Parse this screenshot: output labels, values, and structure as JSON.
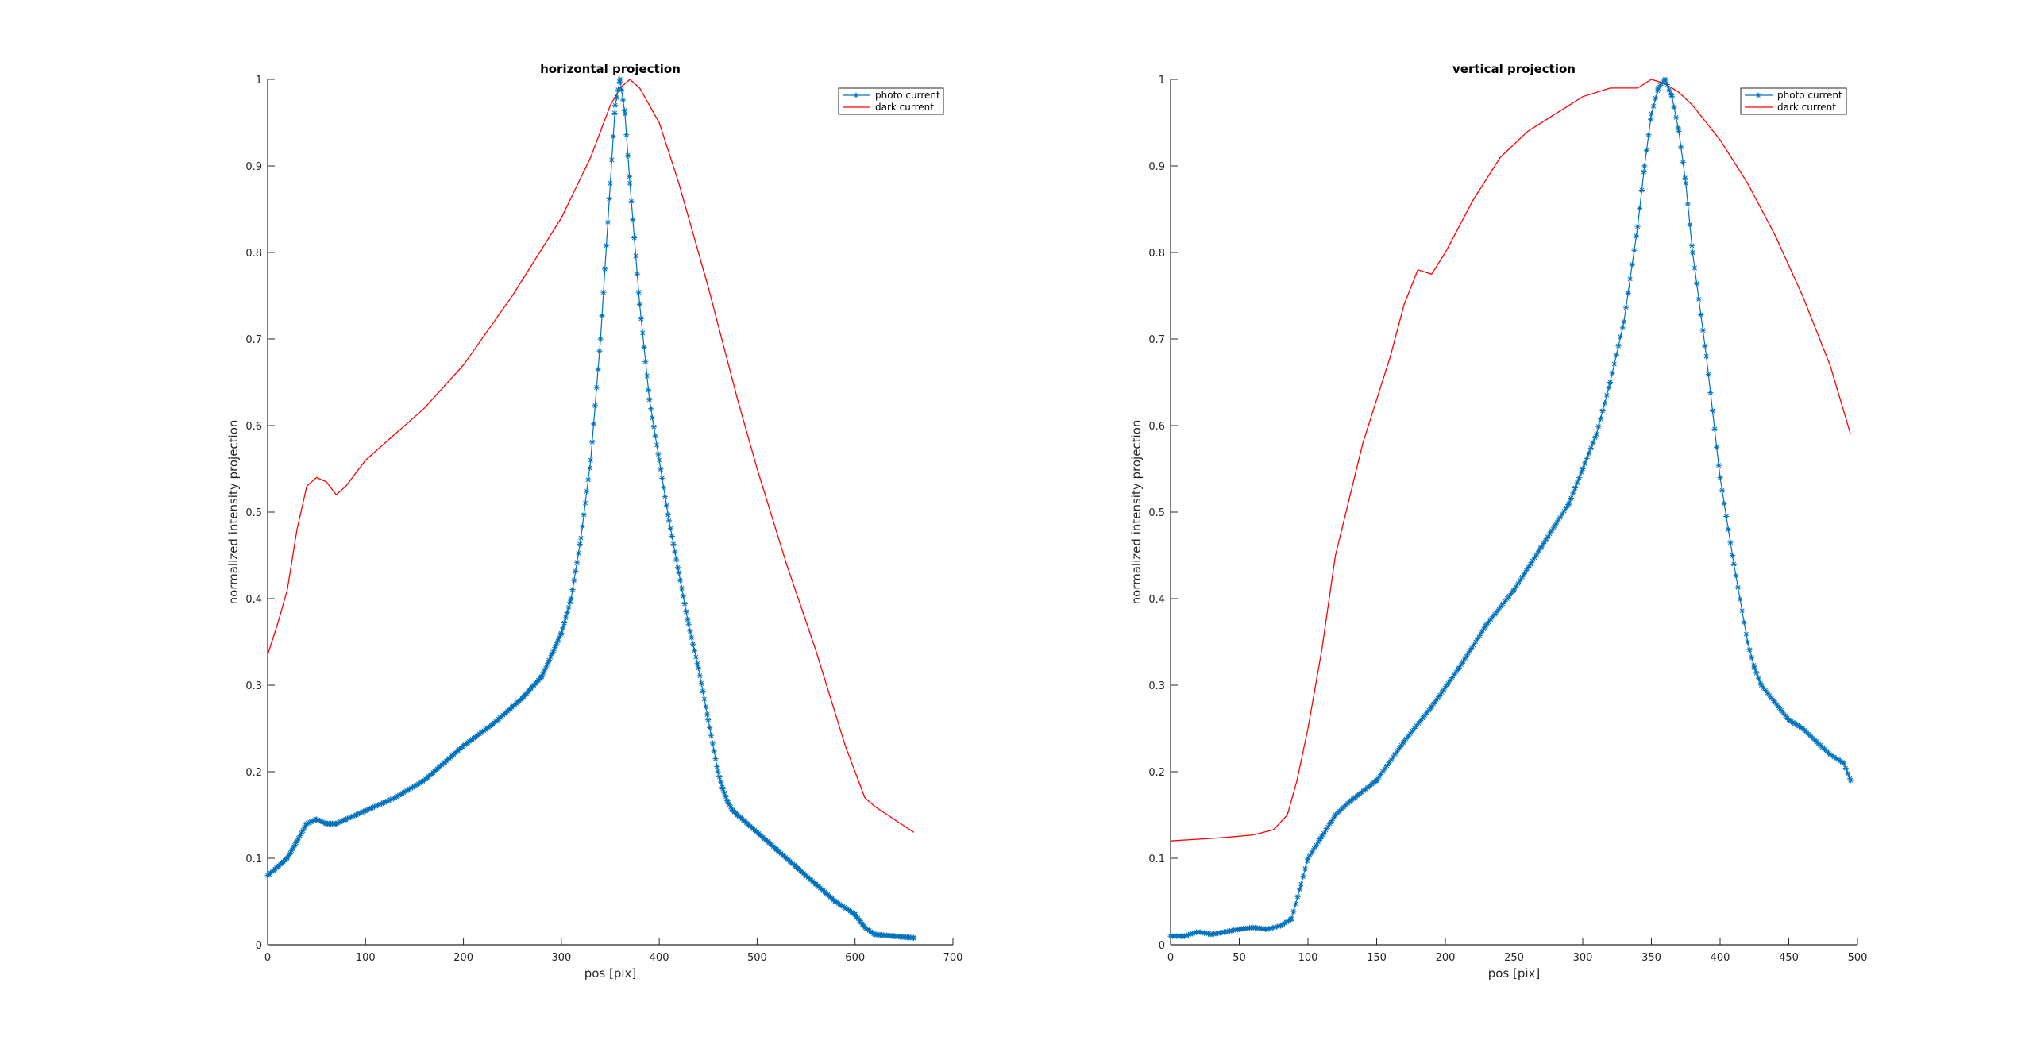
{
  "colors": {
    "photo": "#0072BD",
    "dark": "#FF0000",
    "axis": "#262626"
  },
  "chart_data": [
    {
      "type": "line",
      "title": "horizontal projection",
      "xlabel": "pos [pix]",
      "ylabel": "normalized intensity projection",
      "xlim": [
        0,
        700
      ],
      "ylim": [
        0,
        1
      ],
      "xticks": [
        0,
        100,
        200,
        300,
        400,
        500,
        600,
        700
      ],
      "xtick_labels": [
        "0",
        "100",
        "200",
        "300",
        "400",
        "500",
        "600",
        "700"
      ],
      "yticks": [
        0,
        0.1,
        0.2,
        0.3,
        0.4,
        0.5,
        0.6,
        0.7,
        0.8,
        0.9,
        1
      ],
      "ytick_labels": [
        "0",
        "0.1",
        "0.2",
        "0.3",
        "0.4",
        "0.5",
        "0.6",
        "0.7",
        "0.8",
        "0.9",
        "1"
      ],
      "legend_position": "top-right",
      "grid": false,
      "series": [
        {
          "name": "photo current",
          "marker": "*",
          "x": [
            0,
            10,
            20,
            30,
            40,
            50,
            60,
            70,
            80,
            100,
            130,
            160,
            200,
            230,
            260,
            280,
            300,
            310,
            320,
            330,
            340,
            350,
            355,
            360,
            365,
            370,
            380,
            390,
            400,
            410,
            420,
            430,
            440,
            450,
            460,
            465,
            470,
            475,
            480,
            490,
            500,
            520,
            540,
            560,
            580,
            600,
            610,
            620,
            640,
            660
          ],
          "y": [
            0.08,
            0.09,
            0.1,
            0.12,
            0.14,
            0.145,
            0.14,
            0.14,
            0.145,
            0.155,
            0.17,
            0.19,
            0.23,
            0.255,
            0.285,
            0.31,
            0.36,
            0.4,
            0.47,
            0.56,
            0.7,
            0.88,
            0.97,
            1.0,
            0.96,
            0.88,
            0.74,
            0.63,
            0.56,
            0.49,
            0.43,
            0.37,
            0.32,
            0.26,
            0.2,
            0.18,
            0.165,
            0.155,
            0.15,
            0.14,
            0.13,
            0.11,
            0.09,
            0.07,
            0.05,
            0.035,
            0.02,
            0.012,
            0.01,
            0.008
          ]
        },
        {
          "name": "dark current",
          "marker": "none",
          "x": [
            0,
            10,
            20,
            30,
            40,
            50,
            60,
            70,
            80,
            100,
            130,
            160,
            200,
            250,
            300,
            330,
            350,
            360,
            370,
            380,
            400,
            420,
            450,
            480,
            500,
            530,
            560,
            590,
            610,
            620,
            640,
            660
          ],
          "y": [
            0.335,
            0.37,
            0.41,
            0.48,
            0.53,
            0.54,
            0.535,
            0.52,
            0.53,
            0.56,
            0.59,
            0.62,
            0.67,
            0.75,
            0.84,
            0.91,
            0.97,
            0.99,
            1.0,
            0.99,
            0.95,
            0.88,
            0.76,
            0.63,
            0.55,
            0.44,
            0.34,
            0.23,
            0.17,
            0.16,
            0.145,
            0.13
          ]
        }
      ]
    },
    {
      "type": "line",
      "title": "vertical projection",
      "xlabel": "pos [pix]",
      "ylabel": "normalized intensity projection",
      "xlim": [
        0,
        500
      ],
      "ylim": [
        0,
        1
      ],
      "xticks": [
        0,
        50,
        100,
        150,
        200,
        250,
        300,
        350,
        400,
        450,
        500
      ],
      "xtick_labels": [
        "0",
        "50",
        "100",
        "150",
        "200",
        "250",
        "300",
        "350",
        "400",
        "450",
        "500"
      ],
      "yticks": [
        0,
        0.1,
        0.2,
        0.3,
        0.4,
        0.5,
        0.6,
        0.7,
        0.8,
        0.9,
        1
      ],
      "ytick_labels": [
        "0",
        "0.1",
        "0.2",
        "0.3",
        "0.4",
        "0.5",
        "0.6",
        "0.7",
        "0.8",
        "0.9",
        "1"
      ],
      "legend_position": "top-right",
      "grid": false,
      "series": [
        {
          "name": "photo current",
          "marker": "*",
          "x": [
            0,
            10,
            20,
            30,
            40,
            50,
            60,
            70,
            80,
            88,
            95,
            100,
            110,
            120,
            130,
            150,
            170,
            190,
            210,
            230,
            250,
            270,
            290,
            300,
            310,
            320,
            330,
            340,
            345,
            350,
            355,
            360,
            365,
            370,
            375,
            380,
            390,
            400,
            410,
            420,
            425,
            430,
            440,
            450,
            460,
            470,
            480,
            490,
            495
          ],
          "y": [
            0.01,
            0.01,
            0.015,
            0.012,
            0.015,
            0.018,
            0.02,
            0.018,
            0.022,
            0.03,
            0.07,
            0.1,
            0.125,
            0.15,
            0.165,
            0.19,
            0.235,
            0.275,
            0.32,
            0.37,
            0.41,
            0.46,
            0.51,
            0.55,
            0.59,
            0.65,
            0.72,
            0.83,
            0.9,
            0.96,
            0.99,
            1.0,
            0.98,
            0.94,
            0.88,
            0.8,
            0.68,
            0.54,
            0.44,
            0.35,
            0.32,
            0.3,
            0.28,
            0.26,
            0.25,
            0.235,
            0.22,
            0.21,
            0.19
          ]
        },
        {
          "name": "dark current",
          "marker": "none",
          "x": [
            0,
            20,
            40,
            60,
            75,
            85,
            92,
            100,
            110,
            120,
            140,
            160,
            170,
            180,
            190,
            200,
            220,
            240,
            260,
            280,
            300,
            320,
            340,
            350,
            360,
            370,
            380,
            400,
            420,
            440,
            460,
            480,
            495
          ],
          "y": [
            0.12,
            0.122,
            0.124,
            0.127,
            0.133,
            0.15,
            0.19,
            0.25,
            0.34,
            0.45,
            0.58,
            0.68,
            0.74,
            0.78,
            0.775,
            0.8,
            0.86,
            0.91,
            0.94,
            0.96,
            0.98,
            0.99,
            0.99,
            1.0,
            0.995,
            0.985,
            0.97,
            0.93,
            0.88,
            0.82,
            0.75,
            0.67,
            0.59
          ]
        }
      ]
    }
  ]
}
